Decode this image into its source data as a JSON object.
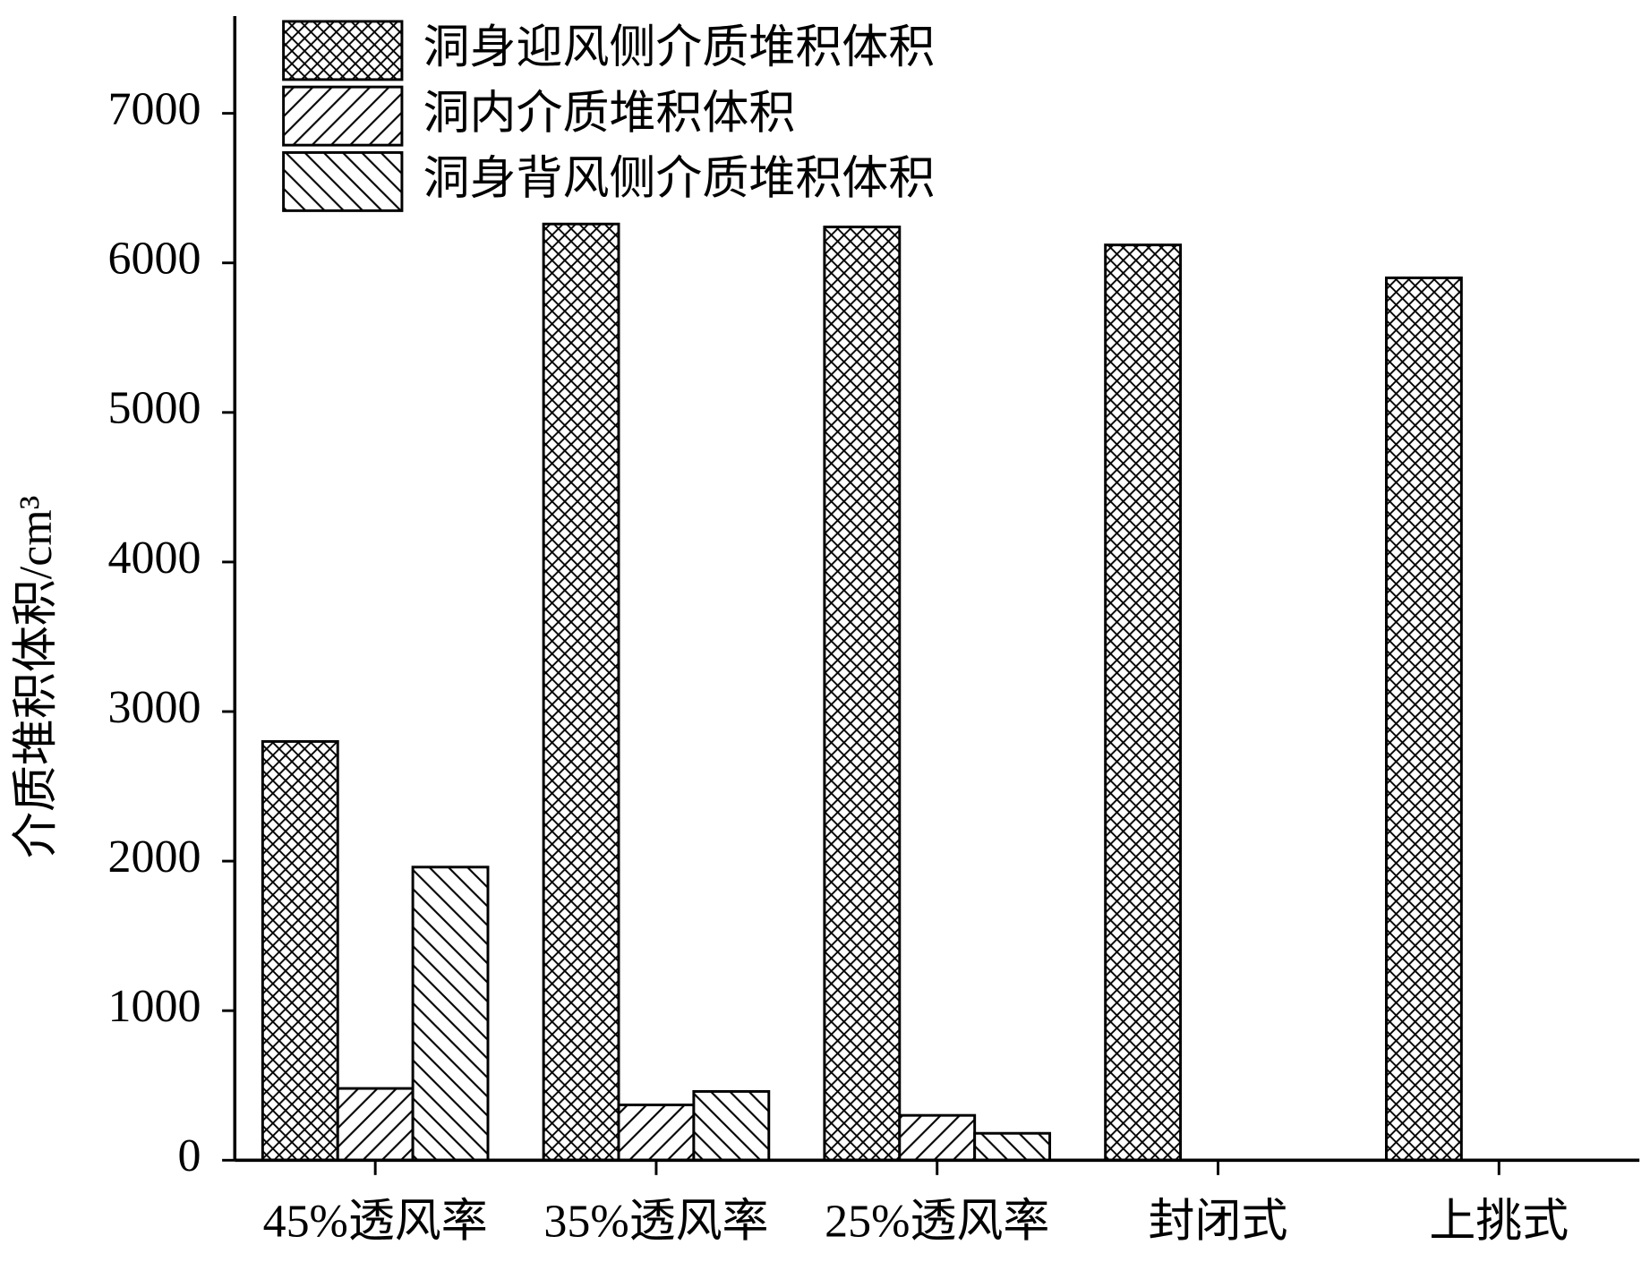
{
  "chart_data": {
    "type": "bar",
    "y_label": "介质堆积体积/cm³",
    "categories": [
      "45%透风率",
      "35%透风率",
      "25%透风率",
      "封闭式",
      "上挑式"
    ],
    "series": [
      {
        "name": "洞身迎风侧介质堆积体积",
        "color": "#000000",
        "hatch": "cross",
        "values": [
          2800,
          6260,
          6240,
          6120,
          5900
        ]
      },
      {
        "name": "洞内介质堆积体积",
        "color": "#000000",
        "hatch": "forward",
        "values": [
          480,
          370,
          300,
          null,
          null
        ]
      },
      {
        "name": "洞身背风侧介质堆积体积",
        "color": "#000000",
        "hatch": "backward",
        "values": [
          1960,
          460,
          180,
          null,
          null
        ]
      }
    ],
    "ylim": [
      0,
      7650
    ],
    "yticks": [
      0,
      1000,
      2000,
      3000,
      4000,
      5000,
      6000,
      7000
    ],
    "grid": false,
    "legend": "upper left"
  }
}
